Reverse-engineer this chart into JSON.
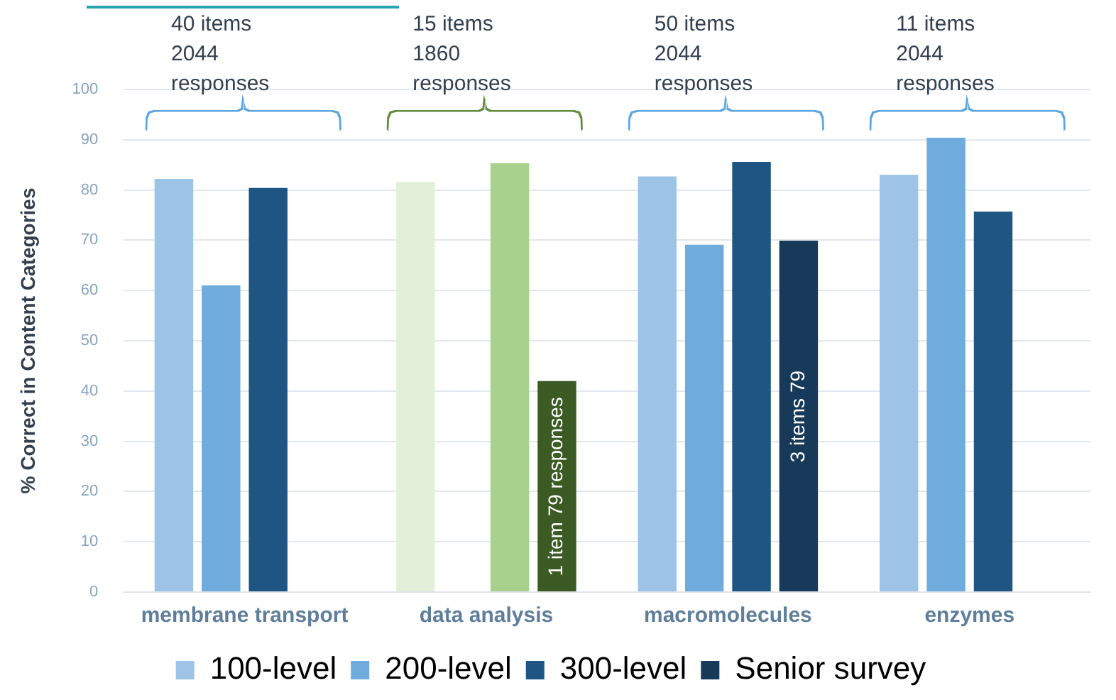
{
  "chart_data": {
    "type": "bar",
    "ylabel": "% Correct in Content Categories",
    "categories": [
      "membrane transport",
      "data analysis",
      "macromolecules",
      "enzymes"
    ],
    "series": [
      {
        "name": "100-level",
        "color": "#9dc3e6",
        "colors": [
          "#9dc3e6",
          "#e2efd9",
          "#9dc3e6",
          "#9dc3e6"
        ],
        "values": [
          82.2,
          81.6,
          82.7,
          83
        ]
      },
      {
        "name": "200-level",
        "color": "#6fabdc",
        "colors": [
          "#6fabdc",
          "#a9d18e",
          "#6fabdc",
          "#6fabdc"
        ],
        "values": [
          61,
          null,
          69.1,
          90.4
        ]
      },
      {
        "name": "300-level",
        "color": "#1f5582",
        "colors": [
          "#1f5582",
          "#a9d18e",
          "#1f5582",
          "#1f5582"
        ],
        "values": [
          80.4,
          85.3,
          85.6,
          75.7
        ]
      },
      {
        "name": "Senior survey",
        "color": "#173a5a",
        "colors": [
          "#173a5a",
          "#3b5a24",
          "#173a5a",
          "#173a5a"
        ],
        "values": [
          null,
          42,
          69.9,
          null
        ]
      }
    ],
    "ylim": [
      0,
      100
    ],
    "yticks": [
      0,
      10,
      20,
      30,
      40,
      50,
      60,
      70,
      80,
      90,
      100
    ],
    "grid": "y",
    "legend": "bottom",
    "annotations": [
      "40 items\n2044\nresponses",
      "15 items\n1860\nresponses",
      "50 items\n2044\nresponses",
      "11 items\n2044\nresponses",
      "1 item 79 responses",
      "3 items 79"
    ]
  }
}
